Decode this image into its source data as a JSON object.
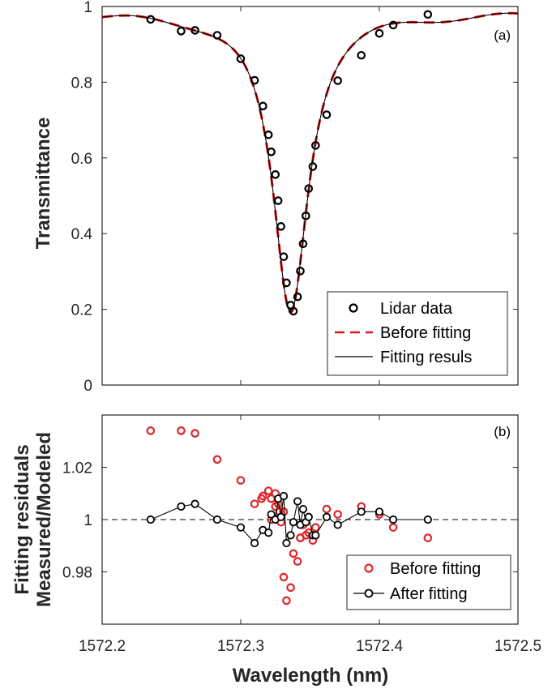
{
  "chart_data": [
    {
      "type": "line",
      "panel_label": "(a)",
      "xlabel": "",
      "ylabel": "Transmittance",
      "xlim": [
        1572.2,
        1572.5
      ],
      "ylim": [
        0,
        1
      ],
      "x_ticks": [
        1572.2,
        1572.3,
        1572.4,
        1572.5
      ],
      "y_ticks": [
        "0",
        "0.2",
        "0.4",
        "0.6",
        "0.8",
        "1"
      ],
      "y_tick_values": [
        0,
        0.2,
        0.4,
        0.6,
        0.8,
        1
      ],
      "legend_position": "bottom-right",
      "series": [
        {
          "name": "Lidar data",
          "style": "black open circles",
          "x": [
            1572.235,
            1572.257,
            1572.267,
            1572.283,
            1572.3,
            1572.31,
            1572.316,
            1572.32,
            1572.322,
            1572.325,
            1572.327,
            1572.329,
            1572.331,
            1572.333,
            1572.336,
            1572.338,
            1572.341,
            1572.343,
            1572.345,
            1572.347,
            1572.349,
            1572.352,
            1572.354,
            1572.362,
            1572.37,
            1572.387,
            1572.4,
            1572.41,
            1572.435
          ],
          "y": [
            0.966,
            0.935,
            0.937,
            0.924,
            0.862,
            0.805,
            0.737,
            0.661,
            0.616,
            0.556,
            0.487,
            0.419,
            0.339,
            0.27,
            0.211,
            0.195,
            0.233,
            0.301,
            0.373,
            0.447,
            0.519,
            0.577,
            0.633,
            0.714,
            0.804,
            0.871,
            0.929,
            0.951,
            0.979
          ]
        },
        {
          "name": "Before fitting",
          "style": "red dashed",
          "color": "#d7191c"
        },
        {
          "name": "Fitting resuls",
          "style": "black solid",
          "color": "#000000"
        }
      ],
      "model": {
        "baseline": 0.982,
        "depth": 0.79,
        "center": 1572.336,
        "hwhm": 0.0155,
        "ripple_amplitude": 0.008
      }
    },
    {
      "type": "scatter",
      "panel_label": "(b)",
      "xlabel": "Wavelength (nm)",
      "ylabel_lines": [
        "Fitting residuals",
        "Measured/Modeled"
      ],
      "xlim": [
        1572.2,
        1572.5
      ],
      "ylim": [
        0.96,
        1.04
      ],
      "x_ticks": [
        1572.2,
        1572.3,
        1572.4,
        1572.5
      ],
      "x_tick_labels": [
        "1572.2",
        "1572.3",
        "1572.4",
        "1572.5"
      ],
      "y_ticks": [
        "0.98",
        "1",
        "1.02"
      ],
      "y_tick_values": [
        0.98,
        1,
        1.02
      ],
      "reference_line": 1,
      "legend_position": "bottom-right",
      "series": [
        {
          "name": "Before fitting",
          "style": "red open circles",
          "color": "#e0262b",
          "x": [
            1572.235,
            1572.257,
            1572.267,
            1572.283,
            1572.3,
            1572.31,
            1572.316,
            1572.32,
            1572.322,
            1572.325,
            1572.327,
            1572.329,
            1572.331,
            1572.333,
            1572.336,
            1572.338,
            1572.341,
            1572.343,
            1572.345,
            1572.347,
            1572.349,
            1572.352,
            1572.354,
            1572.362,
            1572.37,
            1572.387,
            1572.4,
            1572.41,
            1572.435,
            1572.331,
            1572.325,
            1572.343,
            1572.315,
            1572.322,
            1572.328
          ],
          "y": [
            1.034,
            1.034,
            1.033,
            1.023,
            1.015,
            1.006,
            1.009,
            1.011,
            1.008,
            1.01,
            1.006,
            0.999,
            0.978,
            0.969,
            0.974,
            0.987,
            0.984,
            0.993,
            0.998,
            0.994,
            0.995,
            0.992,
            0.997,
            1.004,
            1.002,
            1.005,
            1.002,
            0.997,
            0.993,
            1.003,
            1.005,
            0.993,
            1.008,
            1.0,
            1.003
          ]
        },
        {
          "name": "After fitting",
          "style": "black line with open circles",
          "color": "#000000",
          "x": [
            1572.235,
            1572.257,
            1572.267,
            1572.283,
            1572.3,
            1572.31,
            1572.316,
            1572.32,
            1572.322,
            1572.325,
            1572.327,
            1572.329,
            1572.331,
            1572.333,
            1572.336,
            1572.338,
            1572.341,
            1572.343,
            1572.345,
            1572.347,
            1572.349,
            1572.352,
            1572.354,
            1572.362,
            1572.37,
            1572.387,
            1572.4,
            1572.41,
            1572.435
          ],
          "y": [
            1.0,
            1.005,
            1.006,
            1.0,
            0.997,
            0.991,
            0.996,
            0.995,
            1.002,
            1.0,
            1.008,
            1.001,
            1.009,
            0.991,
            0.994,
            0.999,
            1.007,
            0.998,
            1.004,
            0.999,
            1.001,
            0.994,
            0.994,
            1.001,
            0.998,
            1.003,
            1.003,
            1.0,
            1.0
          ]
        }
      ]
    }
  ]
}
